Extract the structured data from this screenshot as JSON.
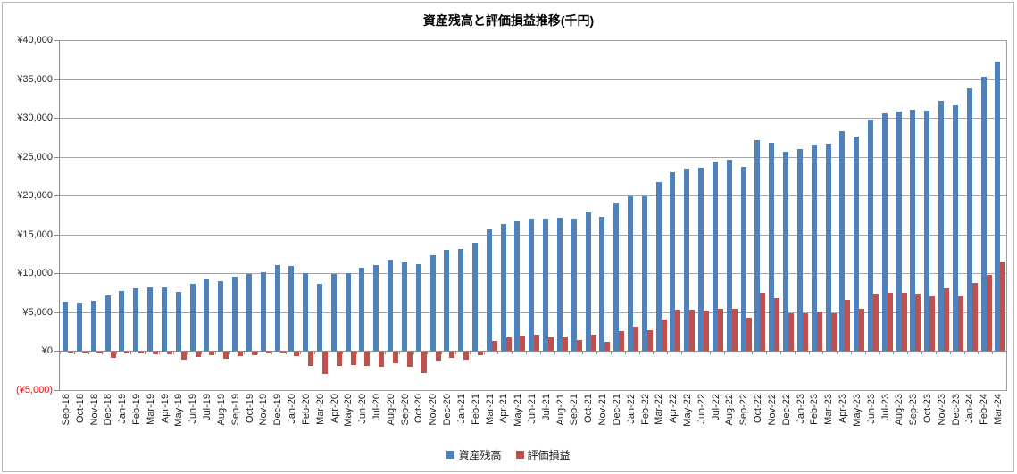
{
  "chart_data": {
    "type": "bar",
    "title": "資産残高と評価損益推移(千円)",
    "legend_position": "bottom",
    "gridlines": "horizontal",
    "categories": [
      "Sep-18",
      "Oct-18",
      "Nov-18",
      "Dec-18",
      "Jan-19",
      "Feb-19",
      "Mar-19",
      "Apr-19",
      "May-19",
      "Jun-19",
      "Jul-19",
      "Aug-19",
      "Sep-19",
      "Oct-19",
      "Nov-19",
      "Dec-19",
      "Jan-20",
      "Feb-20",
      "Mar-20",
      "Apr-20",
      "May-20",
      "Jun-20",
      "Jul-20",
      "Aug-20",
      "Sep-20",
      "Oct-20",
      "Nov-20",
      "Dec-20",
      "Jan-21",
      "Feb-21",
      "Mar-21",
      "Apr-21",
      "May-21",
      "Jun-21",
      "Jul-21",
      "Aug-21",
      "Sep-21",
      "Oct-21",
      "Nov-21",
      "Dec-21",
      "Jan-22",
      "Feb-22",
      "Mar-22",
      "Apr-22",
      "May-22",
      "Jun-22",
      "Jul-22",
      "Aug-22",
      "Sep-22",
      "Oct-22",
      "Nov-22",
      "Dec-22",
      "Jan-23",
      "Feb-23",
      "Mar-23",
      "Apr-23",
      "May-23",
      "Jun-23",
      "Jul-23",
      "Aug-23",
      "Sep-23",
      "Oct-23",
      "Nov-23",
      "Dec-23",
      "Jan-24",
      "Feb-24",
      "Mar-24"
    ],
    "series": [
      {
        "name": "資産残高",
        "color": "#4F81BD",
        "values": [
          6400,
          6300,
          6500,
          7200,
          7700,
          8050,
          8200,
          8250,
          7600,
          8650,
          9300,
          8950,
          9550,
          9900,
          10200,
          11100,
          11000,
          10000,
          8700,
          9900,
          10000,
          10750,
          11050,
          11750,
          11400,
          11150,
          12350,
          13050,
          13150,
          13900,
          15700,
          16300,
          16750,
          17000,
          17050,
          17200,
          17000,
          17900,
          17300,
          19150,
          19900,
          19900,
          21700,
          23050,
          23450,
          23550,
          24400,
          24650,
          23750,
          27200,
          26800,
          25650,
          25950,
          26600,
          26700,
          28300,
          27600,
          29800,
          30600,
          30800,
          31000,
          30900,
          32150,
          31600,
          33800,
          35250,
          37250
        ]
      },
      {
        "name": "評価損益",
        "color": "#C0504D",
        "values": [
          -50,
          -60,
          -120,
          -700,
          -200,
          -220,
          -260,
          -350,
          -1000,
          -620,
          -450,
          -900,
          -510,
          -430,
          -160,
          -100,
          -580,
          -1800,
          -2800,
          -1750,
          -1650,
          -1750,
          -1950,
          -1400,
          -1950,
          -2650,
          -1100,
          -800,
          -1000,
          -400,
          1300,
          1800,
          2000,
          2100,
          1800,
          1900,
          1450,
          2150,
          1150,
          2600,
          3100,
          2700,
          4100,
          5300,
          5300,
          5250,
          5400,
          5450,
          4250,
          7550,
          6850,
          4900,
          4850,
          5150,
          4900,
          6550,
          5500,
          7450,
          7550,
          7550,
          7350,
          7100,
          8100,
          7050,
          8800,
          9800,
          11500
        ]
      }
    ],
    "y_axis": {
      "min": -5000,
      "max": 40000,
      "step": 5000,
      "ticks": [
        {
          "value": 40000,
          "label": "¥40,000"
        },
        {
          "value": 35000,
          "label": "¥35,000"
        },
        {
          "value": 30000,
          "label": "¥30,000"
        },
        {
          "value": 25000,
          "label": "¥25,000"
        },
        {
          "value": 20000,
          "label": "¥20,000"
        },
        {
          "value": 15000,
          "label": "¥15,000"
        },
        {
          "value": 10000,
          "label": "¥10,000"
        },
        {
          "value": 5000,
          "label": "¥5,000"
        },
        {
          "value": 0,
          "label": "¥0"
        },
        {
          "value": -5000,
          "label": "(¥5,000)",
          "color": "#FF0000"
        }
      ]
    }
  }
}
